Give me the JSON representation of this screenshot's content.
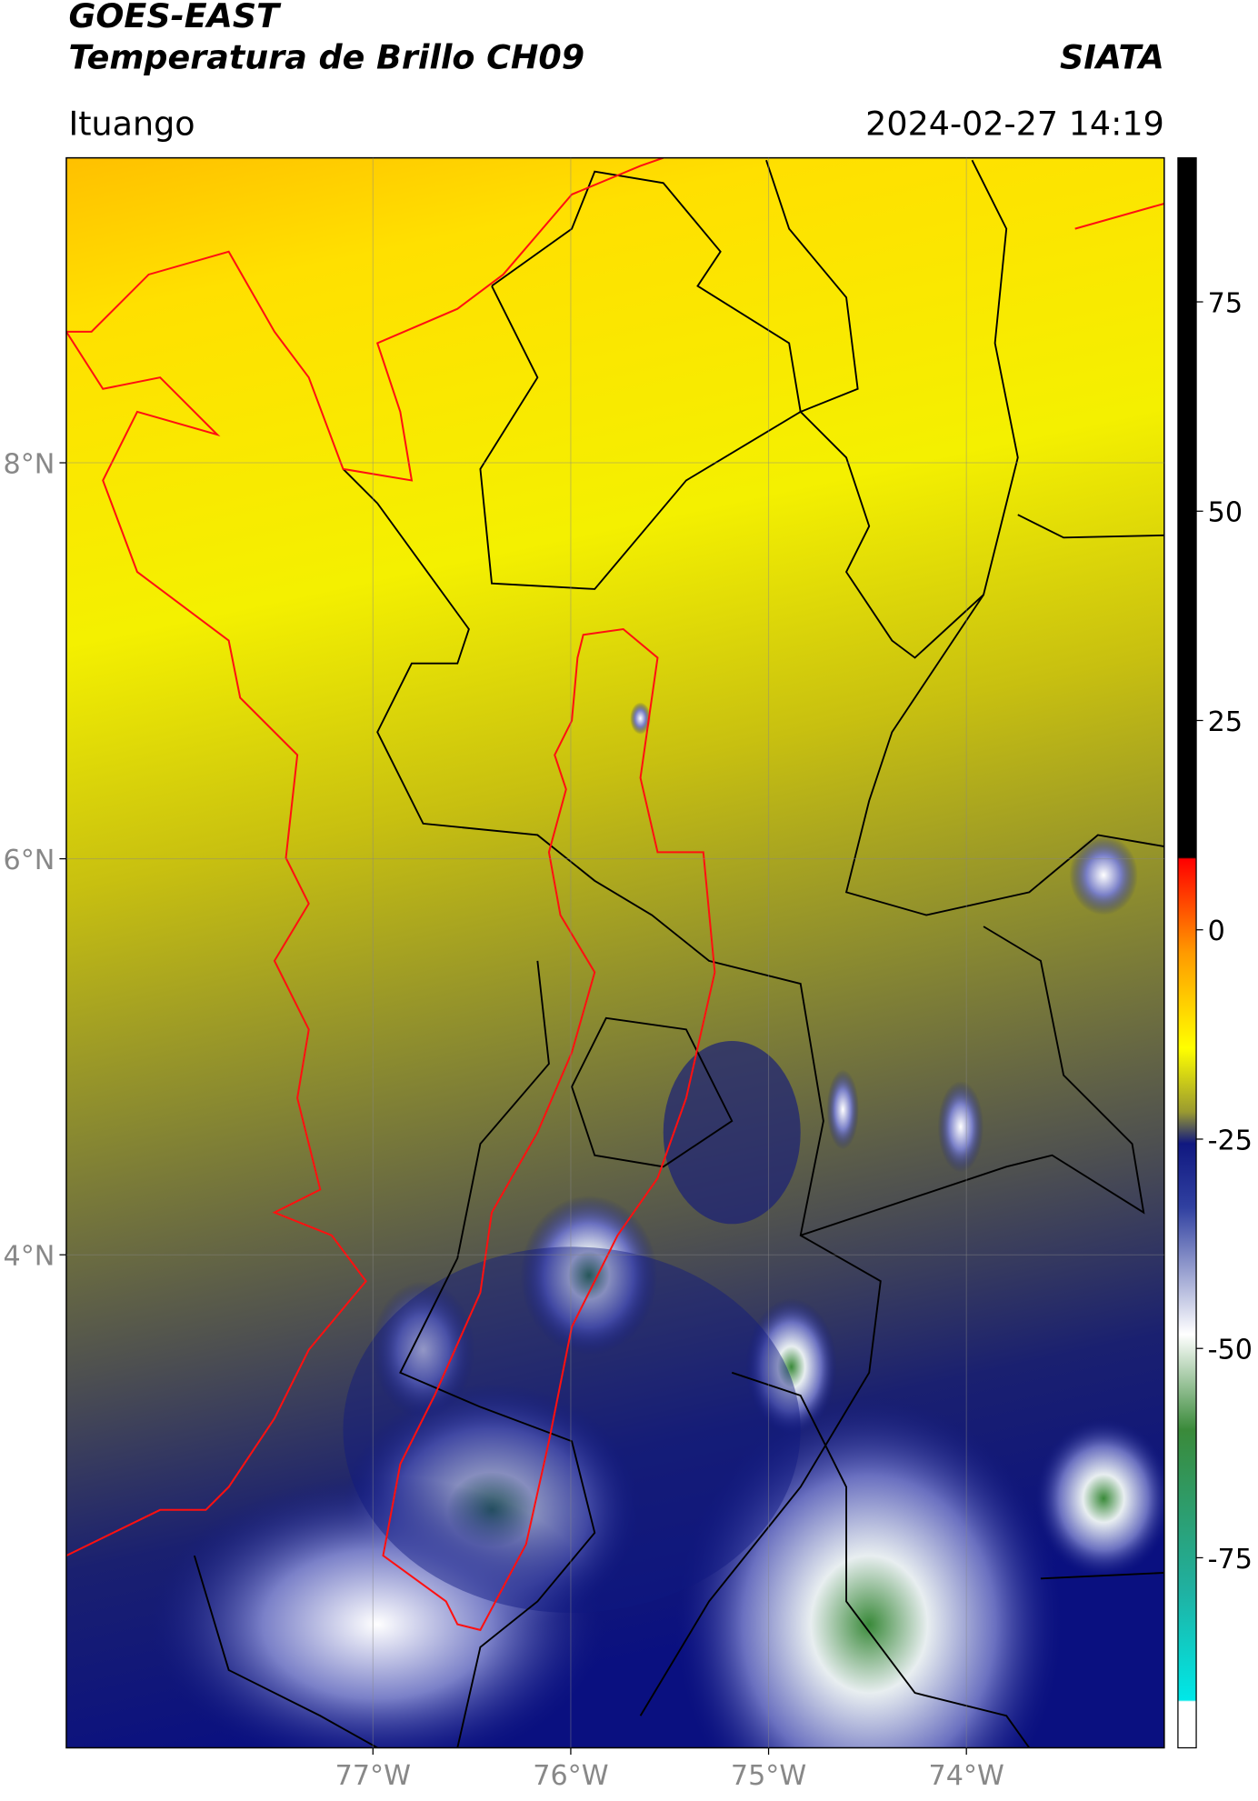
{
  "header": {
    "title": "GOES-EAST",
    "subtitle": "Temperatura de Brillo CH09",
    "brand": "SIATA",
    "location": "Ituango",
    "datetime": "2024-02-27 14:19"
  },
  "map": {
    "lon_range": [
      -78.55,
      -73.0
    ],
    "lat_range": [
      1.51,
      9.54
    ],
    "lon_ticks": [
      {
        "value": -77,
        "label": "77°W"
      },
      {
        "value": -76,
        "label": "76°W"
      },
      {
        "value": -75,
        "label": "75°W"
      },
      {
        "value": -74,
        "label": "74°W"
      }
    ],
    "lat_ticks": [
      {
        "value": 8,
        "label": "8°N"
      },
      {
        "value": 6,
        "label": "6°N"
      },
      {
        "value": 4,
        "label": "4°N"
      }
    ]
  },
  "colorbar": {
    "range": [
      -97.7,
      92.2
    ],
    "ticks": [
      75,
      50,
      25,
      0,
      -25,
      -50,
      -75
    ]
  }
}
